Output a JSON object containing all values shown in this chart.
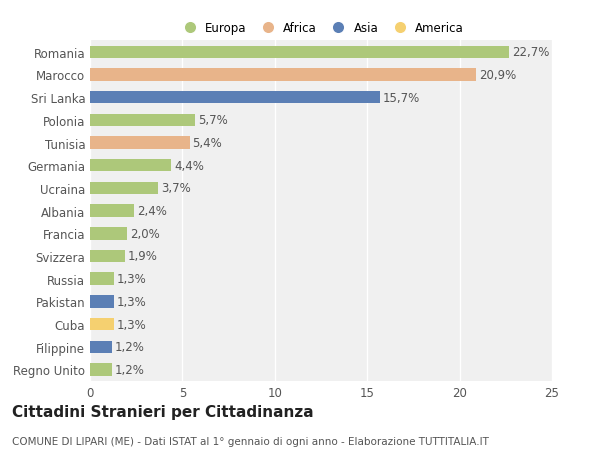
{
  "categories": [
    "Romania",
    "Marocco",
    "Sri Lanka",
    "Polonia",
    "Tunisia",
    "Germania",
    "Ucraina",
    "Albania",
    "Francia",
    "Svizzera",
    "Russia",
    "Pakistan",
    "Cuba",
    "Filippine",
    "Regno Unito"
  ],
  "values": [
    22.7,
    20.9,
    15.7,
    5.7,
    5.4,
    4.4,
    3.7,
    2.4,
    2.0,
    1.9,
    1.3,
    1.3,
    1.3,
    1.2,
    1.2
  ],
  "labels": [
    "22,7%",
    "20,9%",
    "15,7%",
    "5,7%",
    "5,4%",
    "4,4%",
    "3,7%",
    "2,4%",
    "2,0%",
    "1,9%",
    "1,3%",
    "1,3%",
    "1,3%",
    "1,2%",
    "1,2%"
  ],
  "colors": [
    "#adc87a",
    "#e8b48a",
    "#5b7fb5",
    "#adc87a",
    "#e8b48a",
    "#adc87a",
    "#adc87a",
    "#adc87a",
    "#adc87a",
    "#adc87a",
    "#adc87a",
    "#5b7fb5",
    "#f5d070",
    "#5b7fb5",
    "#adc87a"
  ],
  "legend_labels": [
    "Europa",
    "Africa",
    "Asia",
    "America"
  ],
  "legend_colors": [
    "#adc87a",
    "#e8b48a",
    "#5b7fb5",
    "#f5d070"
  ],
  "xlim": [
    0,
    25
  ],
  "xticks": [
    0,
    5,
    10,
    15,
    20,
    25
  ],
  "title": "Cittadini Stranieri per Cittadinanza",
  "subtitle": "COMUNE DI LIPARI (ME) - Dati ISTAT al 1° gennaio di ogni anno - Elaborazione TUTTITALIA.IT",
  "bg_color": "#ffffff",
  "plot_bg_color": "#f0f0f0",
  "grid_color": "#ffffff",
  "bar_height": 0.55,
  "label_fontsize": 8.5,
  "tick_fontsize": 8.5,
  "title_fontsize": 11,
  "subtitle_fontsize": 7.5
}
